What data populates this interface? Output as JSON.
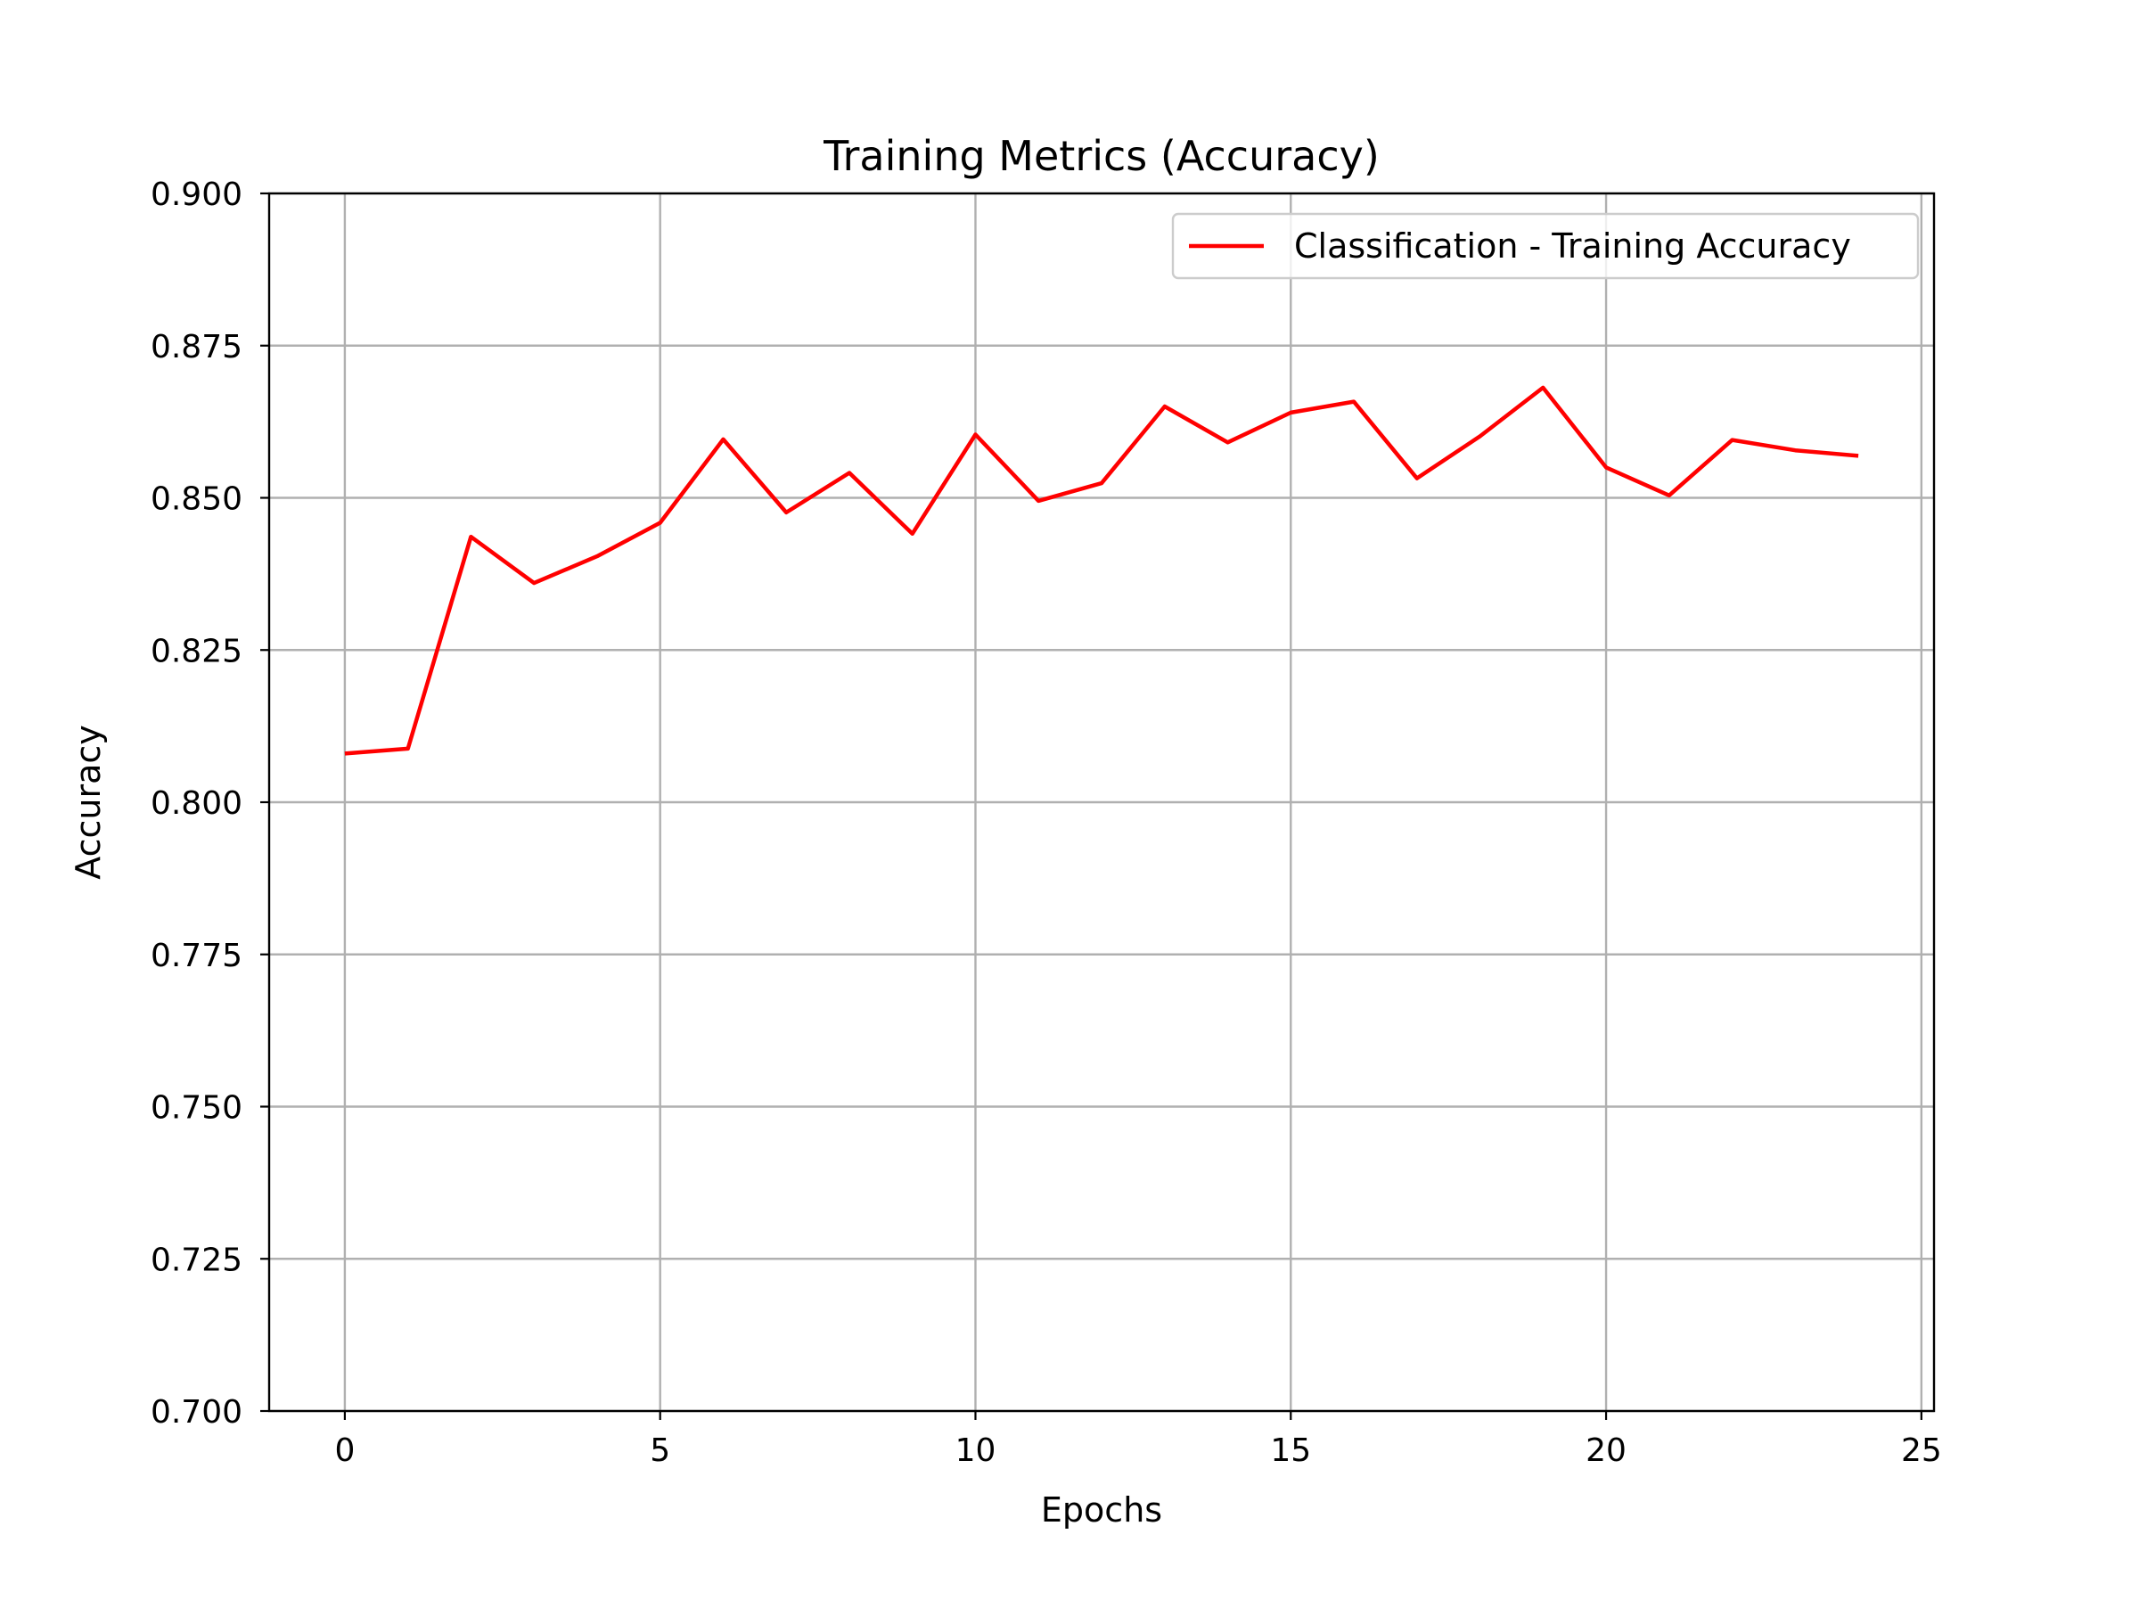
{
  "chart_data": {
    "type": "line",
    "title": "Training Metrics (Accuracy)",
    "xlabel": "Epochs",
    "ylabel": "Accuracy",
    "xlim": [
      -1.2,
      25.2
    ],
    "ylim": [
      0.7,
      0.9
    ],
    "x_ticks": [
      0,
      5,
      10,
      15,
      20,
      25
    ],
    "x_tick_labels": [
      "0",
      "5",
      "10",
      "15",
      "20",
      "25"
    ],
    "y_ticks": [
      0.7,
      0.725,
      0.75,
      0.775,
      0.8,
      0.825,
      0.85,
      0.875,
      0.9
    ],
    "y_tick_labels": [
      "0.700",
      "0.725",
      "0.750",
      "0.775",
      "0.800",
      "0.825",
      "0.850",
      "0.875",
      "0.900"
    ],
    "grid": true,
    "legend_position": "top-right",
    "series": [
      {
        "name": "Classification - Training Accuracy",
        "color": "#ff0000",
        "x": [
          0,
          1,
          2,
          3,
          4,
          5,
          6,
          7,
          8,
          9,
          10,
          11,
          12,
          13,
          14,
          15,
          16,
          17,
          18,
          19,
          20,
          21,
          22,
          23,
          24
        ],
        "y": [
          0.808,
          0.8088,
          0.8436,
          0.836,
          0.8404,
          0.8459,
          0.8596,
          0.8476,
          0.8541,
          0.8441,
          0.8604,
          0.8495,
          0.8524,
          0.865,
          0.8591,
          0.864,
          0.8658,
          0.8532,
          0.8601,
          0.8681,
          0.855,
          0.8504,
          0.8595,
          0.8578,
          0.8569
        ]
      }
    ]
  }
}
